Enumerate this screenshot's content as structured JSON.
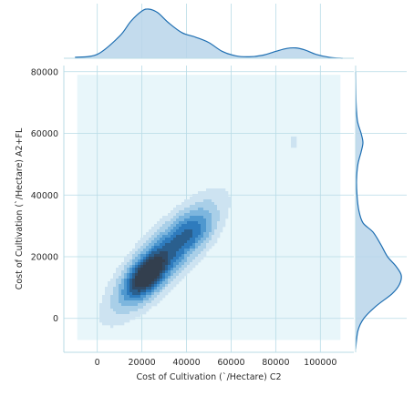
{
  "chart_data": {
    "type": "kde-joint",
    "title": "",
    "xlabel": "Cost of Cultivation (`/Hectare) C2",
    "ylabel": "Cost of Cultivation (`/Hectare) A2+FL",
    "xlim": [
      -15000,
      115000
    ],
    "ylim": [
      -11000,
      82000
    ],
    "xticks": [
      0,
      20000,
      40000,
      60000,
      80000,
      100000
    ],
    "yticks": [
      0,
      20000,
      40000,
      60000,
      80000
    ],
    "grid": true,
    "colors": {
      "background_fill": "#e8f6fa",
      "grid": "#b8dbe6",
      "marginal_line": "#1f6fb2",
      "marginal_fill": "#b9d5ea",
      "levels": [
        "#cde3f1",
        "#a9cfe8",
        "#7db6de",
        "#4f98cf",
        "#2e7bbd",
        "#2a5f8e",
        "#2f4a66",
        "#333f4e"
      ]
    },
    "density_blobs": [
      {
        "x": 30000,
        "y": 20000,
        "sx": 13000,
        "sy": 10000,
        "rho": 0.82,
        "w": 0.7
      },
      {
        "x": 22000,
        "y": 14000,
        "sx": 5500,
        "sy": 4500,
        "rho": 0.55,
        "w": 0.9
      },
      {
        "x": 43000,
        "y": 28000,
        "sx": 6000,
        "sy": 4000,
        "rho": 0.3,
        "w": 0.25
      },
      {
        "x": 88000,
        "y": 57000,
        "sx": 2600,
        "sy": 2600,
        "rho": 0.0,
        "w": 0.07
      }
    ],
    "marginal_x": {
      "x": [
        -10000,
        0,
        10000,
        15000,
        20000,
        23000,
        27000,
        32000,
        38000,
        44000,
        50000,
        56000,
        62000,
        68000,
        74000,
        80000,
        85000,
        89000,
        93000,
        98000,
        104000,
        110000
      ],
      "density": [
        0.02,
        0.08,
        0.45,
        0.75,
        0.96,
        1.0,
        0.93,
        0.72,
        0.52,
        0.43,
        0.32,
        0.14,
        0.05,
        0.03,
        0.06,
        0.14,
        0.2,
        0.21,
        0.17,
        0.08,
        0.02,
        0.0
      ]
    },
    "marginal_y": {
      "y": [
        -10000,
        -4000,
        0,
        4000,
        8000,
        11000,
        14000,
        17000,
        20000,
        24000,
        28000,
        31000,
        35000,
        40000,
        45000,
        50000,
        54000,
        57000,
        60000,
        64000,
        70000,
        80000
      ],
      "density": [
        0.0,
        0.05,
        0.18,
        0.45,
        0.8,
        0.96,
        1.0,
        0.88,
        0.7,
        0.55,
        0.38,
        0.16,
        0.07,
        0.03,
        0.02,
        0.05,
        0.12,
        0.16,
        0.12,
        0.04,
        0.01,
        0.0
      ]
    }
  }
}
